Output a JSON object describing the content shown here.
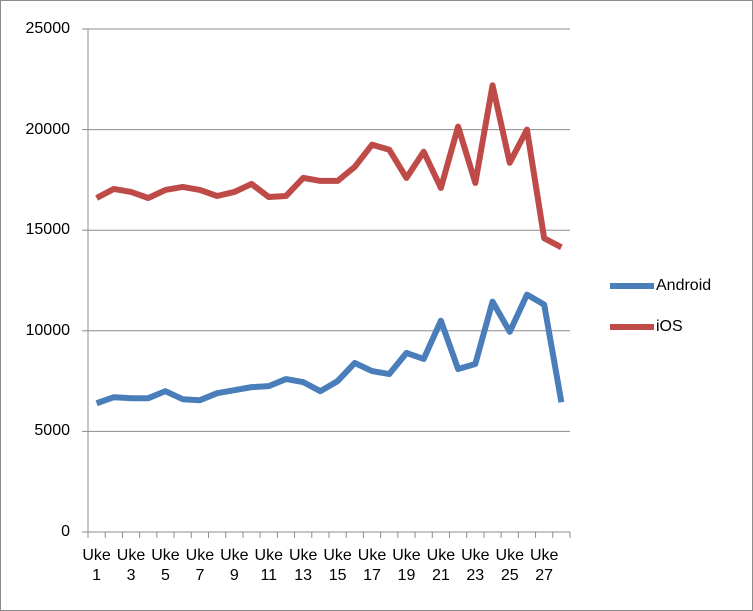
{
  "chart_data": {
    "type": "line",
    "categories": [
      "Uke 1",
      null,
      "Uke 3",
      null,
      "Uke 5",
      null,
      "Uke 7",
      null,
      "Uke 9",
      null,
      "Uke 11",
      null,
      "Uke 13",
      null,
      "Uke 15",
      null,
      "Uke 17",
      null,
      "Uke 19",
      null,
      "Uke 21",
      null,
      "Uke 23",
      null,
      "Uke 25",
      null,
      "Uke 27",
      null
    ],
    "series": [
      {
        "name": "Android",
        "color": "#4a7ebb",
        "values": [
          6400,
          6700,
          6650,
          6650,
          7000,
          6600,
          6550,
          6900,
          7050,
          7200,
          7250,
          7600,
          7450,
          7000,
          7500,
          8400,
          8000,
          7850,
          8900,
          8600,
          10500,
          8100,
          8350,
          11450,
          9950,
          11800,
          11300,
          6450
        ]
      },
      {
        "name": "iOS",
        "color": "#be4b48",
        "values": [
          16600,
          17050,
          16900,
          16600,
          17000,
          17150,
          17000,
          16700,
          16900,
          17300,
          16650,
          16700,
          17600,
          17450,
          17450,
          18150,
          19250,
          19000,
          17600,
          18900,
          17100,
          20150,
          17350,
          22200,
          18350,
          20000,
          14600,
          14150
        ]
      }
    ],
    "ylim": [
      0,
      25000
    ],
    "yticks": [
      0,
      5000,
      10000,
      15000,
      20000,
      25000
    ],
    "grid": true,
    "legend": "right"
  }
}
